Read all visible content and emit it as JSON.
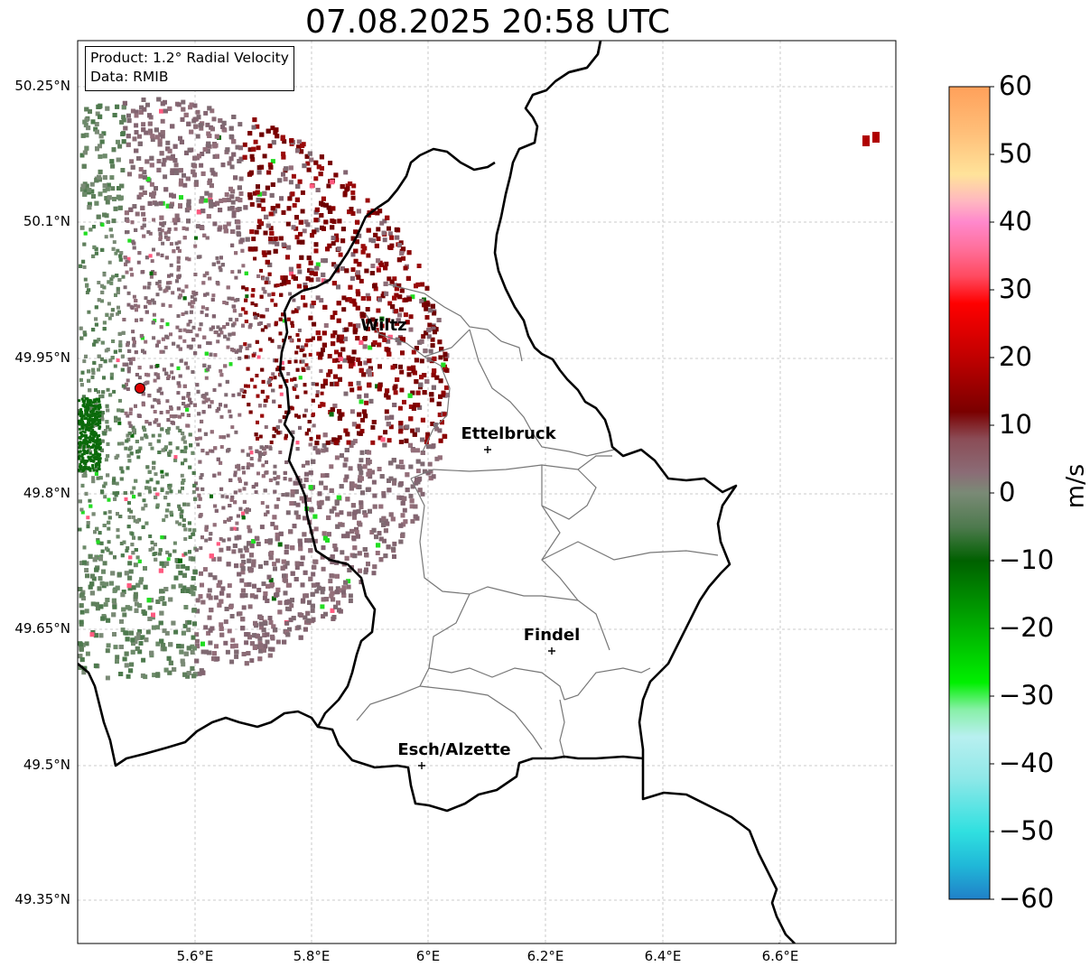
{
  "title": "07.08.2025 20:58 UTC",
  "info": {
    "product": "Product: 1.2° Radial Velocity",
    "source": "Data: RMIB"
  },
  "axes": {
    "lat_labels": [
      "50.25°N",
      "50.1°N",
      "49.95°N",
      "49.8°N",
      "49.65°N",
      "49.5°N",
      "49.35°N"
    ],
    "lon_labels": [
      "5.6°E",
      "5.8°E",
      "6°E",
      "6.2°E",
      "6.4°E",
      "6.6°E"
    ]
  },
  "cities": [
    {
      "name": "Wiltz"
    },
    {
      "name": "Ettelbruck"
    },
    {
      "name": "Findel"
    },
    {
      "name": "Esch/Alzette"
    }
  ],
  "colorbar": {
    "unit": "m/s",
    "ticks": [
      "60",
      "50",
      "40",
      "30",
      "20",
      "10",
      "0",
      "−10",
      "−20",
      "−30",
      "−40",
      "−50",
      "−60"
    ],
    "min": -60,
    "max": 60,
    "stops": [
      {
        "v": 60,
        "c": "#ffa05a"
      },
      {
        "v": 53,
        "c": "#ffc07a"
      },
      {
        "v": 47,
        "c": "#ffe39a"
      },
      {
        "v": 43,
        "c": "#ffb6c1"
      },
      {
        "v": 40,
        "c": "#ff88cc"
      },
      {
        "v": 36,
        "c": "#ff6f9a"
      },
      {
        "v": 32,
        "c": "#ff4a60"
      },
      {
        "v": 28,
        "c": "#ff0000"
      },
      {
        "v": 20,
        "c": "#c00000"
      },
      {
        "v": 12,
        "c": "#7a0000"
      },
      {
        "v": 8,
        "c": "#8b4c56"
      },
      {
        "v": 3,
        "c": "#8b6c76"
      },
      {
        "v": 0,
        "c": "#7a8a76"
      },
      {
        "v": -5,
        "c": "#4e7a4e"
      },
      {
        "v": -10,
        "c": "#006000"
      },
      {
        "v": -20,
        "c": "#00b000"
      },
      {
        "v": -28,
        "c": "#00f000"
      },
      {
        "v": -32,
        "c": "#88f0a8"
      },
      {
        "v": -36,
        "c": "#b8f0f0"
      },
      {
        "v": -42,
        "c": "#90e8e8"
      },
      {
        "v": -50,
        "c": "#30e0e0"
      },
      {
        "v": -55,
        "c": "#20b8d8"
      },
      {
        "v": -60,
        "c": "#2080c8"
      }
    ]
  },
  "radar": {
    "site_color": "#dd0000"
  },
  "colors": {
    "border": "#000000",
    "district": "#777777",
    "grid": "#bbbbbb"
  }
}
